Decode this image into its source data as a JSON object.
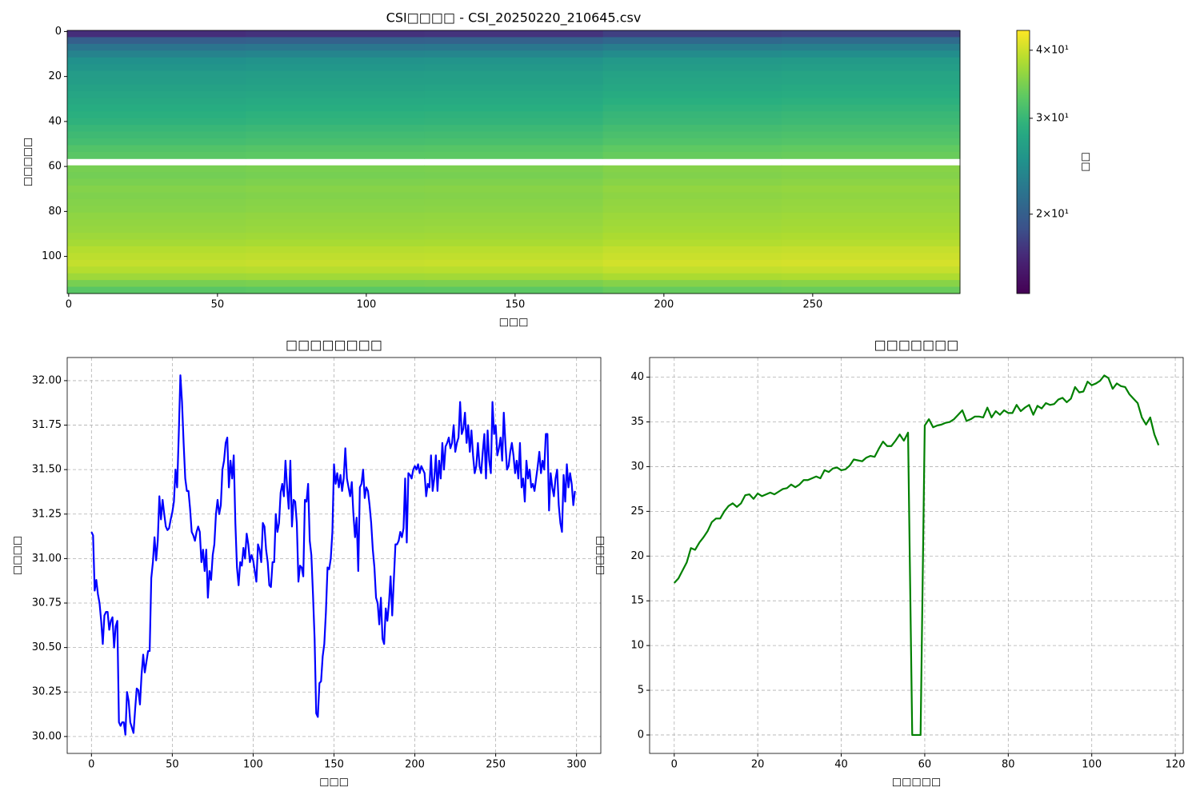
{
  "chart_data": [
    {
      "type": "heatmap",
      "title": "CSI□□□□ - CSI_20250220_210645.csv",
      "xlabel": "□□□",
      "ylabel": "□□□□□",
      "colorbar_label": "□□",
      "colormap": "viridis",
      "log_scale": true,
      "clim": [
        14.3,
        43.5
      ],
      "cticks": [
        {
          "value": 20,
          "label": "2×10¹"
        },
        {
          "value": 30,
          "label": "3×10¹"
        },
        {
          "value": 40,
          "label": "4×10¹"
        }
      ],
      "xlim": [
        -0.5,
        299.5
      ],
      "ylim": [
        116.5,
        -0.5
      ],
      "xticks": [
        0,
        50,
        100,
        150,
        200,
        250
      ],
      "yticks": [
        0,
        20,
        40,
        60,
        80,
        100
      ],
      "z": [
        [
          17.0,
          17.2,
          17.3,
          17.9,
          18.1
        ],
        [
          20.0,
          20.2,
          20.3,
          20.9,
          21.1
        ],
        [
          22.0,
          22.2,
          22.3,
          22.9,
          23.1
        ],
        [
          23.5,
          23.7,
          23.8,
          24.4,
          24.6
        ],
        [
          25.0,
          25.2,
          25.3,
          25.9,
          26.1
        ],
        [
          25.5,
          25.7,
          25.8,
          26.4,
          26.6
        ],
        [
          26.3,
          26.5,
          26.6,
          27.2,
          27.4
        ],
        [
          26.5,
          26.7,
          26.8,
          27.4,
          27.6
        ],
        [
          27.0,
          27.2,
          27.3,
          27.9,
          28.1
        ],
        [
          27.5,
          27.7,
          27.8,
          28.4,
          28.6
        ],
        [
          28.0,
          28.2,
          28.3,
          28.9,
          29.1
        ],
        [
          28.5,
          28.7,
          28.8,
          29.4,
          29.6
        ],
        [
          29.0,
          29.2,
          29.3,
          29.9,
          30.1
        ],
        [
          29.3,
          29.5,
          29.6,
          30.2,
          30.4
        ],
        [
          30.0,
          30.2,
          30.3,
          30.9,
          31.1
        ],
        [
          30.5,
          30.7,
          30.8,
          31.4,
          31.6
        ],
        [
          31.0,
          31.2,
          31.3,
          31.9,
          32.1
        ],
        [
          32.0,
          32.2,
          32.3,
          32.9,
          33.1
        ],
        [
          32.5,
          32.7,
          32.8,
          33.4,
          33.6
        ],
        [
          null,
          null,
          null,
          null,
          null
        ],
        [
          34.5,
          34.7,
          34.8,
          35.4,
          35.6
        ],
        [
          34.2,
          34.4,
          34.5,
          35.1,
          35.3
        ],
        [
          34.7,
          34.9,
          35.0,
          35.6,
          35.8
        ],
        [
          35.3,
          35.5,
          35.6,
          36.2,
          36.4
        ],
        [
          35.0,
          35.2,
          35.3,
          35.9,
          36.1
        ],
        [
          35.3,
          35.5,
          35.6,
          36.2,
          36.4
        ],
        [
          35.5,
          35.7,
          35.8,
          36.4,
          36.6
        ],
        [
          36.0,
          36.2,
          36.3,
          36.9,
          37.1
        ],
        [
          36.2,
          36.4,
          36.5,
          37.1,
          37.3
        ],
        [
          36.5,
          36.7,
          36.8,
          37.4,
          37.6
        ],
        [
          37.0,
          37.2,
          37.3,
          37.9,
          38.1
        ],
        [
          37.5,
          37.7,
          37.8,
          38.4,
          38.6
        ],
        [
          38.5,
          38.7,
          38.8,
          39.4,
          39.6
        ],
        [
          39.0,
          39.2,
          39.3,
          39.9,
          40.1
        ],
        [
          39.5,
          39.7,
          39.8,
          40.4,
          40.6
        ],
        [
          38.5,
          38.7,
          38.8,
          39.4,
          39.6
        ],
        [
          37.0,
          37.2,
          37.3,
          37.9,
          38.1
        ],
        [
          34.5,
          34.7,
          34.8,
          35.4,
          35.6
        ],
        [
          32.5,
          32.7,
          32.8,
          33.4,
          33.6
        ]
      ]
    },
    {
      "type": "line",
      "title": "□□□□□□□□",
      "xlabel": "□□□",
      "ylabel": "□□□□",
      "grid": true,
      "xlim": [
        -15,
        315
      ],
      "ylim": [
        29.905,
        32.13
      ],
      "xticks": [
        0,
        50,
        100,
        150,
        200,
        250,
        300
      ],
      "yticks": [
        {
          "value": 30,
          "label": "30.00"
        },
        {
          "value": 30.25,
          "label": "30.25"
        },
        {
          "value": 30.5,
          "label": "30.50"
        },
        {
          "value": 30.75,
          "label": "30.75"
        },
        {
          "value": 31,
          "label": "31.00"
        },
        {
          "value": 31.25,
          "label": "31.25"
        },
        {
          "value": 31.5,
          "label": "31.50"
        },
        {
          "value": 31.75,
          "label": "31.75"
        },
        {
          "value": 32,
          "label": "32.00"
        }
      ],
      "series": [
        {
          "color": "#0000ff",
          "values": [
            31.15,
            31.13,
            30.82,
            30.88,
            30.8,
            30.75,
            30.65,
            30.52,
            30.68,
            30.7,
            30.7,
            30.6,
            30.65,
            30.67,
            30.5,
            30.62,
            30.65,
            30.08,
            30.06,
            30.08,
            30.08,
            30.01,
            30.25,
            30.2,
            30.08,
            30.05,
            30.02,
            30.15,
            30.27,
            30.26,
            30.18,
            30.35,
            30.46,
            30.36,
            30.42,
            30.48,
            30.48,
            30.89,
            30.98,
            31.12,
            30.99,
            31.1,
            31.35,
            31.22,
            31.33,
            31.25,
            31.18,
            31.16,
            31.17,
            31.22,
            31.26,
            31.32,
            31.5,
            31.4,
            31.7,
            32.03,
            31.88,
            31.65,
            31.45,
            31.38,
            31.38,
            31.28,
            31.15,
            31.13,
            31.1,
            31.15,
            31.18,
            31.15,
            30.98,
            31.05,
            30.93,
            31.05,
            30.78,
            30.93,
            30.88,
            31.02,
            31.08,
            31.25,
            31.33,
            31.25,
            31.3,
            31.5,
            31.55,
            31.65,
            31.68,
            31.4,
            31.55,
            31.45,
            31.58,
            31.2,
            30.95,
            30.85,
            30.98,
            30.96,
            31.06,
            31.0,
            31.14,
            31.08,
            30.98,
            31.02,
            30.99,
            30.93,
            30.87,
            31.08,
            31.05,
            30.98,
            31.2,
            31.18,
            31.05,
            30.98,
            30.85,
            30.84,
            30.98,
            30.98,
            31.25,
            31.15,
            31.2,
            31.37,
            31.42,
            31.35,
            31.55,
            31.4,
            31.28,
            31.55,
            31.18,
            31.33,
            31.32,
            31.2,
            30.87,
            30.96,
            30.95,
            30.9,
            31.33,
            31.32,
            31.42,
            31.1,
            31.02,
            30.8,
            30.55,
            30.13,
            30.11,
            30.3,
            30.31,
            30.45,
            30.52,
            30.7,
            30.95,
            30.94,
            31.0,
            31.15,
            31.53,
            31.42,
            31.48,
            31.4,
            31.47,
            31.38,
            31.45,
            31.62,
            31.45,
            31.4,
            31.35,
            31.43,
            31.25,
            31.12,
            31.23,
            30.93,
            31.4,
            31.42,
            31.5,
            31.34,
            31.4,
            31.38,
            31.3,
            31.2,
            31.05,
            30.95,
            30.78,
            30.75,
            30.63,
            30.78,
            30.55,
            30.52,
            30.72,
            30.65,
            30.75,
            30.9,
            30.68,
            30.88,
            31.08,
            31.08,
            31.1,
            31.15,
            31.12,
            31.17,
            31.45,
            31.09,
            31.48,
            31.47,
            31.45,
            31.5,
            31.52,
            31.5,
            31.53,
            31.48,
            31.52,
            31.5,
            31.48,
            31.35,
            31.42,
            31.4,
            31.58,
            31.38,
            31.45,
            31.58,
            31.38,
            31.55,
            31.45,
            31.65,
            31.5,
            31.63,
            31.65,
            31.68,
            31.62,
            31.65,
            31.75,
            31.6,
            31.65,
            31.68,
            31.88,
            31.7,
            31.73,
            31.82,
            31.65,
            31.75,
            31.6,
            31.72,
            31.58,
            31.48,
            31.52,
            31.65,
            31.52,
            31.48,
            31.6,
            31.7,
            31.45,
            31.72,
            31.55,
            31.48,
            31.88,
            31.7,
            31.75,
            31.58,
            31.62,
            31.68,
            31.55,
            31.82,
            31.65,
            31.5,
            31.52,
            31.6,
            31.65,
            31.58,
            31.48,
            31.55,
            31.45,
            31.65,
            31.4,
            31.45,
            31.32,
            31.55,
            31.45,
            31.5,
            31.4,
            31.42,
            31.38,
            31.45,
            31.52,
            31.6,
            31.48,
            31.55,
            31.5,
            31.7,
            31.7,
            31.27,
            31.48,
            31.4,
            31.35,
            31.45,
            31.5,
            31.3,
            31.2,
            31.15,
            31.47,
            31.32,
            31.53,
            31.4,
            31.48,
            31.42,
            31.3,
            31.38
          ]
        }
      ]
    },
    {
      "type": "line",
      "title": "□□□□□□□",
      "xlabel": "□□□□□",
      "ylabel": "□□□□",
      "grid": true,
      "xlim": [
        -5.9,
        121.9
      ],
      "ylim": [
        -2.06,
        42.2
      ],
      "xticks": [
        0,
        20,
        40,
        60,
        80,
        100,
        120
      ],
      "yticks": [
        0,
        5,
        10,
        15,
        20,
        25,
        30,
        35,
        40
      ],
      "series": [
        {
          "color": "#008000",
          "values": [
            17.0,
            17.5,
            18.4,
            19.3,
            20.9,
            20.7,
            21.5,
            22.1,
            22.8,
            23.8,
            24.2,
            24.2,
            25.0,
            25.6,
            25.9,
            25.5,
            25.9,
            26.8,
            26.9,
            26.4,
            27.0,
            26.7,
            26.9,
            27.1,
            26.9,
            27.2,
            27.5,
            27.6,
            28.0,
            27.7,
            28.0,
            28.5,
            28.5,
            28.7,
            28.9,
            28.7,
            29.6,
            29.4,
            29.8,
            29.9,
            29.6,
            29.7,
            30.1,
            30.8,
            30.7,
            30.6,
            31.0,
            31.2,
            31.1,
            32.0,
            32.8,
            32.3,
            32.3,
            32.9,
            33.6,
            32.9,
            33.8,
            0,
            0,
            0,
            34.6,
            35.3,
            34.4,
            34.6,
            34.7,
            34.9,
            35.0,
            35.3,
            35.8,
            36.3,
            35.1,
            35.3,
            35.6,
            35.6,
            35.5,
            36.6,
            35.5,
            36.2,
            35.8,
            36.3,
            36.0,
            36.0,
            36.9,
            36.2,
            36.6,
            36.9,
            35.8,
            36.8,
            36.5,
            37.1,
            36.9,
            37.0,
            37.5,
            37.7,
            37.2,
            37.6,
            38.9,
            38.3,
            38.4,
            39.5,
            39.1,
            39.3,
            39.6,
            40.2,
            39.9,
            38.7,
            39.3,
            39.0,
            38.9,
            38.1,
            37.6,
            37.1,
            35.5,
            34.7,
            35.5,
            33.6,
            32.4
          ]
        }
      ]
    }
  ]
}
